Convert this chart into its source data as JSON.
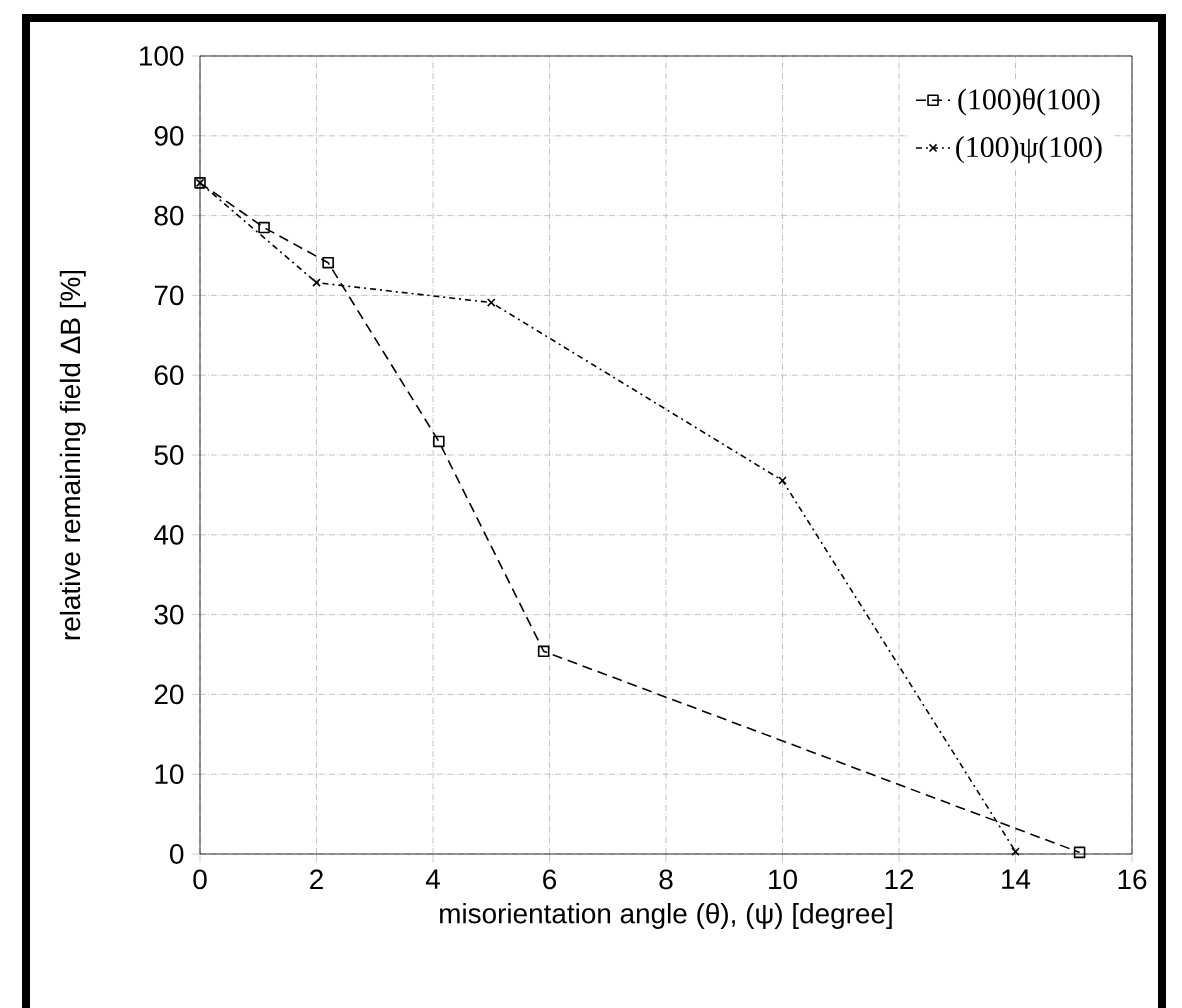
{
  "chart_data": {
    "type": "line",
    "xlabel": "misorientation angle (θ), (ψ) [degree]",
    "ylabel": "relative remaining field ΔB [%]",
    "xlim": [
      0,
      16
    ],
    "xticks": [
      0,
      2,
      4,
      6,
      8,
      10,
      12,
      14,
      16
    ],
    "ylim": [
      0,
      100
    ],
    "yticks": [
      0,
      10,
      20,
      30,
      40,
      50,
      60,
      70,
      80,
      90,
      100
    ],
    "grid": true,
    "legend": "top right",
    "series": [
      {
        "name": "(100)θ(100)",
        "color": "#000000",
        "marker": "square",
        "line_style": "dashed",
        "x": [
          0,
          1.1,
          2.2,
          4.1,
          5.9,
          15.1
        ],
        "values": [
          84.1,
          78.5,
          74.1,
          51.7,
          25.4,
          0.2
        ]
      },
      {
        "name": "(100)ψ(100)",
        "color": "#000000",
        "marker": "cross",
        "line_style": "dashdotted",
        "x": [
          0,
          2.0,
          5.0,
          10.0,
          14.0
        ],
        "values": [
          84.1,
          71.6,
          69.1,
          46.8,
          0.3
        ]
      }
    ]
  }
}
